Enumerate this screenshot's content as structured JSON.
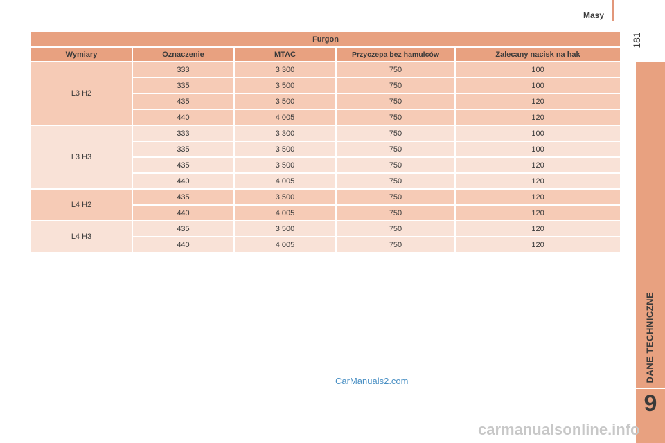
{
  "header": {
    "title": "Masy"
  },
  "page_number": "181",
  "section_label": "DANE TECHNICZNE",
  "chapter_number": "9",
  "table": {
    "title": "Furgon",
    "columns": [
      "Wymiary",
      "Oznaczenie",
      "MTAC",
      "Przyczepa bez hamulców",
      "Zalecany nacisk na hak"
    ],
    "groups": [
      {
        "label": "L3 H2",
        "rows": [
          [
            "333",
            "3 300",
            "750",
            "100"
          ],
          [
            "335",
            "3 500",
            "750",
            "100"
          ],
          [
            "435",
            "3 500",
            "750",
            "120"
          ],
          [
            "440",
            "4 005",
            "750",
            "120"
          ]
        ]
      },
      {
        "label": "L3 H3",
        "rows": [
          [
            "333",
            "3 300",
            "750",
            "100"
          ],
          [
            "335",
            "3 500",
            "750",
            "100"
          ],
          [
            "435",
            "3 500",
            "750",
            "120"
          ],
          [
            "440",
            "4 005",
            "750",
            "120"
          ]
        ]
      },
      {
        "label": "L4 H2",
        "rows": [
          [
            "435",
            "3 500",
            "750",
            "120"
          ],
          [
            "440",
            "4 005",
            "750",
            "120"
          ]
        ]
      },
      {
        "label": "L4 H3",
        "rows": [
          [
            "435",
            "3 500",
            "750",
            "120"
          ],
          [
            "440",
            "4 005",
            "750",
            "120"
          ]
        ]
      }
    ]
  },
  "watermarks": {
    "site1": "CarManuals2.com",
    "site2": "carmanualsonline.info"
  }
}
